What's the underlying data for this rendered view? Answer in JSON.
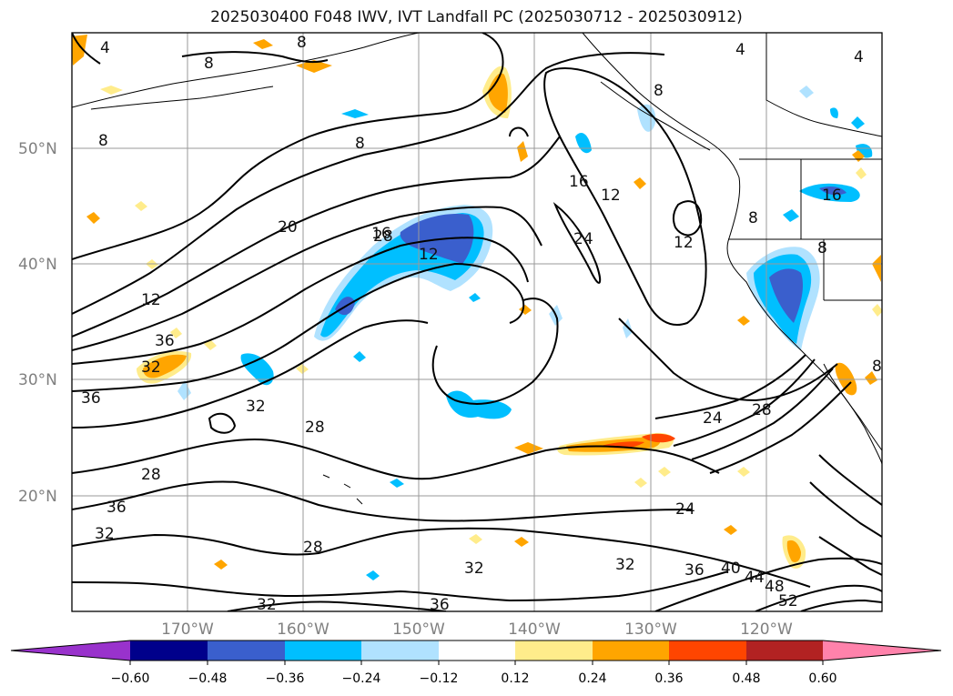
{
  "title": "2025030400 F048 IWV, IVT Landfall PC (2025030712 - 2025030912)",
  "map": {
    "lat_labels": [
      "50°N",
      "40°N",
      "30°N",
      "20°N"
    ],
    "lon_labels": [
      "170°W",
      "160°W",
      "150°W",
      "140°W",
      "130°W",
      "120°W"
    ],
    "contour_labels": [
      "4",
      "8",
      "8",
      "8",
      "8",
      "8",
      "8",
      "4",
      "4",
      "8",
      "8",
      "12",
      "12",
      "12",
      "12",
      "16",
      "16",
      "16",
      "20",
      "24",
      "24",
      "24",
      "28",
      "28",
      "28",
      "28",
      "28",
      "32",
      "32",
      "32",
      "32",
      "32",
      "32",
      "36",
      "36",
      "36",
      "36",
      "36",
      "40",
      "44",
      "48",
      "52"
    ]
  },
  "colorbar": {
    "tick_labels": [
      "−0.60",
      "−0.48",
      "−0.36",
      "−0.24",
      "−0.12",
      "0.12",
      "0.24",
      "0.36",
      "0.48",
      "0.60"
    ],
    "colors": [
      "#9932cc",
      "#00008b",
      "#3a5fcd",
      "#00bfff",
      "#b0e2ff",
      "#ffffff",
      "#ffec8b",
      "#ffa500",
      "#ff4500",
      "#b22222",
      "#ff82ab"
    ]
  },
  "colors": {
    "pos_weak": "#ffec8b",
    "pos_mid": "#ffa500",
    "pos_strong": "#ff4500",
    "neg_weak": "#b0e2ff",
    "neg_mid": "#00bfff",
    "neg_strong": "#3a5fcd"
  }
}
